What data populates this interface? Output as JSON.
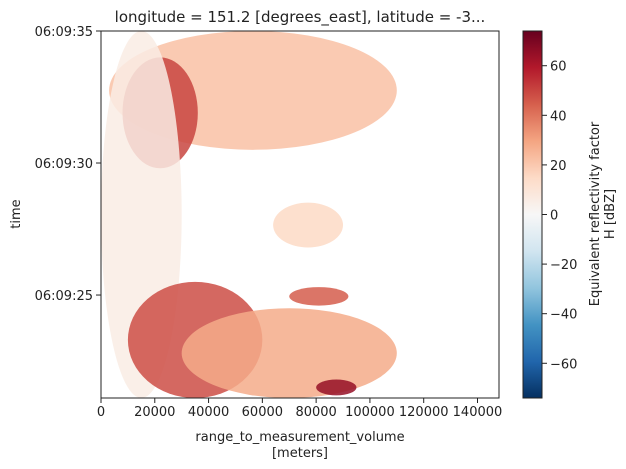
{
  "chart_data": {
    "type": "heatmap",
    "title": "longitude = 151.2 [degrees_east], latitude = -3...",
    "xlabel": "range_to_measurement_volume",
    "xlabel_units": "[meters]",
    "ylabel": "time",
    "x_ticks": [
      "0",
      "20000",
      "40000",
      "60000",
      "80000",
      "100000",
      "120000",
      "140000"
    ],
    "x_tick_values": [
      0,
      20000,
      40000,
      60000,
      80000,
      100000,
      120000,
      140000
    ],
    "xlim": [
      0,
      148000
    ],
    "y_ticks": [
      "06:09:25",
      "06:09:30",
      "06:09:35"
    ],
    "y_tick_seconds": [
      25,
      30,
      35
    ],
    "ylim_seconds": [
      21.1,
      35
    ],
    "colorbar": {
      "label_line1": "Equivalent reflectivity factor",
      "label_line2": "H [dBZ]",
      "ticks": [
        "60",
        "40",
        "20",
        "0",
        "−20",
        "−40",
        "−60"
      ],
      "tick_values": [
        60,
        40,
        20,
        0,
        -20,
        -40,
        -60
      ],
      "range": [
        -74,
        74
      ],
      "colormap": "RdBu_r",
      "colors": [
        "#053061",
        "#2166ac",
        "#4393c3",
        "#92c5de",
        "#d1e5f0",
        "#f7f7f7",
        "#fddbc7",
        "#f4a582",
        "#d6604d",
        "#b2182b",
        "#67001f"
      ]
    },
    "features": [
      {
        "x": [
          3000,
          110000
        ],
        "t": [
          30.5,
          35
        ],
        "dbz": 22
      },
      {
        "x": [
          8000,
          36000
        ],
        "t": [
          29.8,
          34
        ],
        "dbz": 50
      },
      {
        "x": [
          0,
          30000
        ],
        "t": [
          21.1,
          35
        ],
        "dbz": 6
      },
      {
        "x": [
          64000,
          90000
        ],
        "t": [
          26.8,
          28.5
        ],
        "dbz": 15
      },
      {
        "x": [
          10000,
          60000
        ],
        "t": [
          21.1,
          25.5
        ],
        "dbz": 48
      },
      {
        "x": [
          30000,
          110000
        ],
        "t": [
          21.1,
          24.5
        ],
        "dbz": 28
      },
      {
        "x": [
          80000,
          95000
        ],
        "t": [
          21.2,
          21.8
        ],
        "dbz": 65
      },
      {
        "x": [
          70000,
          92000
        ],
        "t": [
          24.6,
          25.3
        ],
        "dbz": 45
      }
    ]
  }
}
